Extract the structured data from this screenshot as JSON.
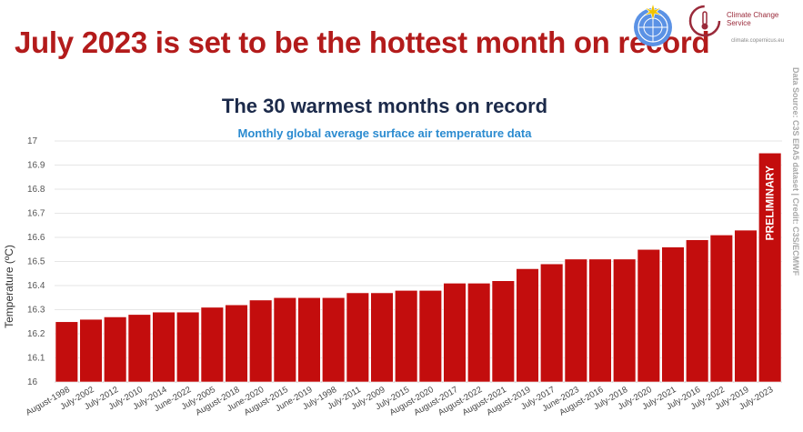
{
  "headline": "July 2023 is set to be the hottest month on record",
  "logos": {
    "cc_name": "Climate Change Service",
    "cc_url": "climate.copernicus.eu"
  },
  "source_credit": "Data Source: C3S ERA5 dataset | Credit: C3S/ECMWF",
  "colors": {
    "headline": "#b31b1b",
    "bar": "#c30d0d",
    "bar_edge": "#ffffff",
    "title": "#1c2a4a",
    "subtitle": "#2b8bd0"
  },
  "chart_data": {
    "type": "bar",
    "title": "The 30 warmest months on record",
    "subtitle": "Monthly global average surface air temperature data",
    "xlabel": "",
    "ylabel": "Temperature (ºC)",
    "ylim": [
      16,
      17
    ],
    "yticks": [
      "16",
      "16.1",
      "16.2",
      "16.3",
      "16.4",
      "16.5",
      "16.6",
      "16.7",
      "16.8",
      "16.9",
      "17"
    ],
    "grid": true,
    "categories": [
      "August-1998",
      "July-2002",
      "July-2012",
      "July-2010",
      "July-2014",
      "June-2022",
      "July-2005",
      "August-2018",
      "June-2020",
      "August-2015",
      "June-2019",
      "July-1998",
      "July-2011",
      "July-2009",
      "July-2015",
      "August-2020",
      "August-2017",
      "August-2022",
      "August-2021",
      "August-2019",
      "July-2017",
      "June-2023",
      "August-2016",
      "July-2018",
      "July-2020",
      "July-2021",
      "July-2016",
      "July-2022",
      "July-2019",
      "July-2023"
    ],
    "values": [
      16.25,
      16.26,
      16.27,
      16.28,
      16.29,
      16.29,
      16.31,
      16.32,
      16.34,
      16.35,
      16.35,
      16.35,
      16.37,
      16.37,
      16.38,
      16.38,
      16.41,
      16.41,
      16.42,
      16.47,
      16.49,
      16.51,
      16.51,
      16.51,
      16.55,
      16.56,
      16.59,
      16.61,
      16.63,
      16.95
    ],
    "annotations": [
      {
        "category": "July-2023",
        "text": "PRELIMINARY"
      }
    ]
  }
}
